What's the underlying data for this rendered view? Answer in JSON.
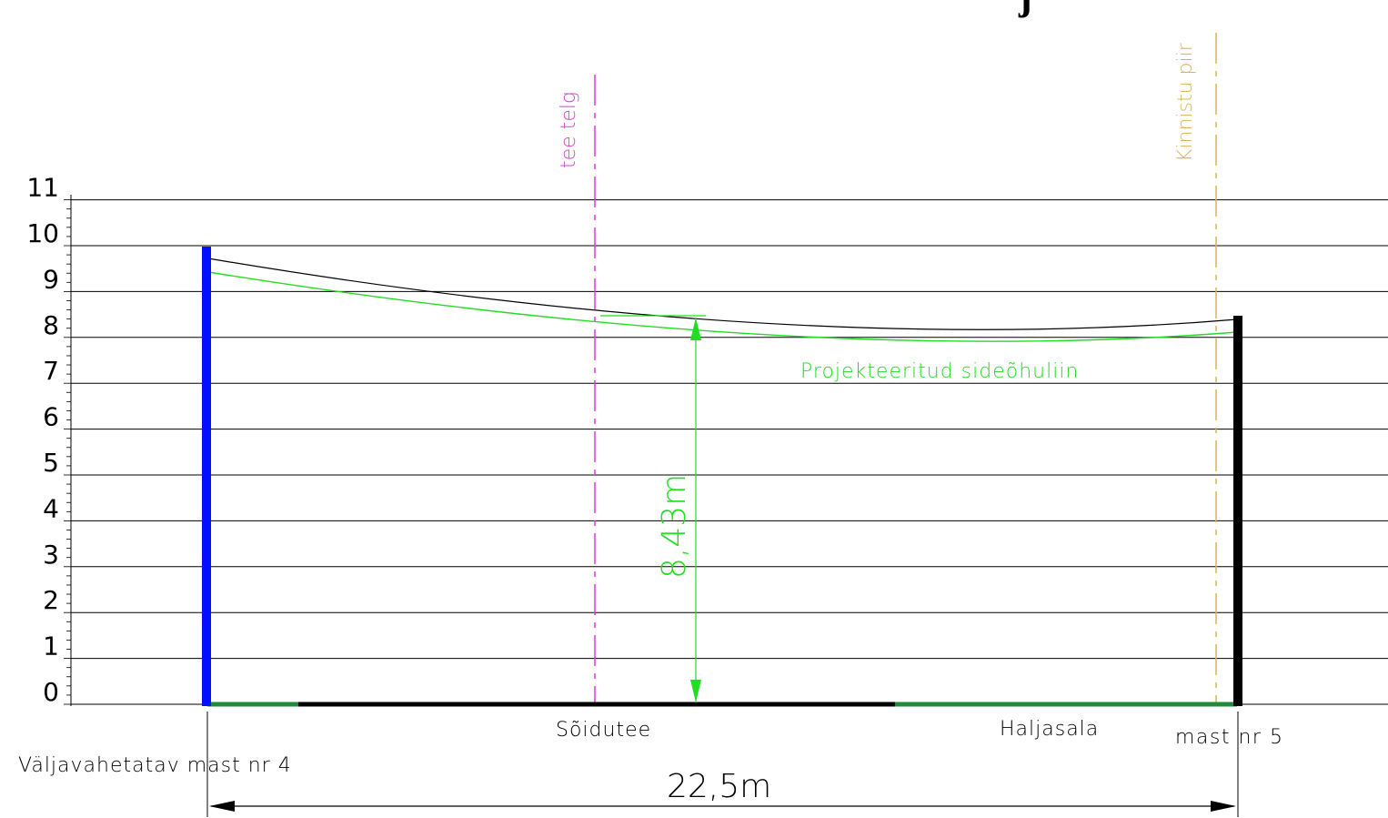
{
  "title_fragment": "j",
  "y_axis": {
    "ticks": [
      "0",
      "1",
      "2",
      "3",
      "4",
      "5",
      "6",
      "7",
      "8",
      "9",
      "10",
      "11"
    ],
    "min": 0,
    "max": 11,
    "gridlines": true
  },
  "reference_lines": {
    "road_axis": {
      "label": "tee telg",
      "color": "#d63fd6",
      "style": "dashed"
    },
    "property_boundary": {
      "label": "Kinnistu piir",
      "color": "#d9b45a",
      "style": "dashed"
    }
  },
  "poles": {
    "left": {
      "label": "Väljavahetatav mast nr 4",
      "color": "#0010ff",
      "height_m": 10
    },
    "right": {
      "label": "mast nr 5",
      "color": "#000000",
      "height_m": 8.4
    }
  },
  "lines": {
    "existing": {
      "color": "#000000",
      "start_m": 9.75,
      "end_m": 8.4
    },
    "projected": {
      "label": "Projekteeritud sideõhuliin",
      "color": "#22dd22",
      "start_m": 9.45,
      "end_m": 8.15
    }
  },
  "ground_segments": {
    "road": {
      "label": "Sõidutee"
    },
    "green": {
      "label": "Haljasala"
    }
  },
  "dimensions": {
    "clearance": {
      "label": "8,43m",
      "value_m": 8.43
    },
    "span": {
      "label": "22,5m",
      "value_m": 22.5
    }
  },
  "colors": {
    "grid": "#000000",
    "ground_green": "#1f8a3c",
    "ground_road": "#000000",
    "dimension_green": "#22dd22"
  }
}
